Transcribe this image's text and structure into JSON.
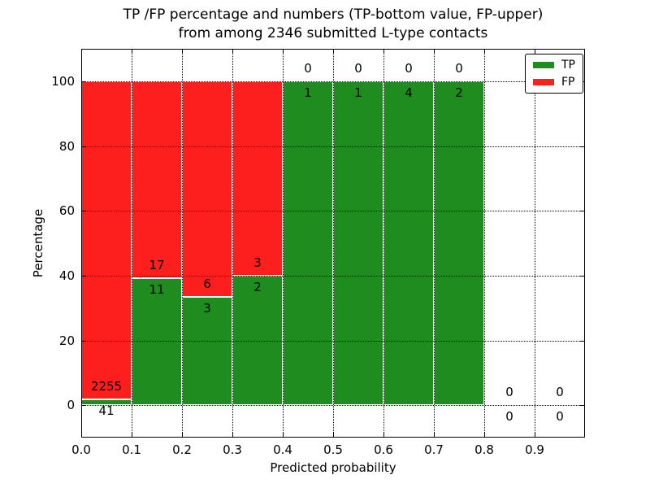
{
  "chart_data": {
    "type": "bar",
    "stacked": true,
    "title_line1": "TP /FP percentage and numbers (TP-bottom value, FP-upper)",
    "title_line2": "from among 2346 submitted L-type contacts",
    "xlabel": "Predicted probability",
    "ylabel": "Percentage",
    "xlim": [
      0.0,
      1.0
    ],
    "ylim": [
      -10,
      110
    ],
    "xticks": [
      "0.0",
      "0.1",
      "0.2",
      "0.3",
      "0.4",
      "0.5",
      "0.6",
      "0.7",
      "0.8",
      "0.9"
    ],
    "yticks": [
      "0",
      "20",
      "40",
      "60",
      "80",
      "100"
    ],
    "grid": {
      "style": "dotted",
      "color": "#000000",
      "on_top": true
    },
    "legend_position": "upper right",
    "bin_width": 0.1,
    "bin_starts": [
      0.0,
      0.1,
      0.2,
      0.3,
      0.4,
      0.5,
      0.6,
      0.7,
      0.8,
      0.9
    ],
    "series": [
      {
        "name": "TP",
        "color": "#1e8c1e",
        "counts": [
          41,
          11,
          3,
          2,
          1,
          1,
          4,
          2,
          0,
          0
        ]
      },
      {
        "name": "FP",
        "color": "#fd1e1e",
        "counts": [
          2255,
          17,
          6,
          3,
          0,
          0,
          0,
          0,
          0,
          0
        ]
      }
    ],
    "tp_percentages": [
      1.79,
      39.29,
      33.33,
      40.0,
      100.0,
      100.0,
      100.0,
      100.0,
      null,
      null
    ],
    "total_submitted": "2346"
  },
  "colors": {
    "tp": "#1e8c1e",
    "fp": "#fd1e1e",
    "grid": "#000000",
    "text": "#000000",
    "background": "#ffffff"
  }
}
